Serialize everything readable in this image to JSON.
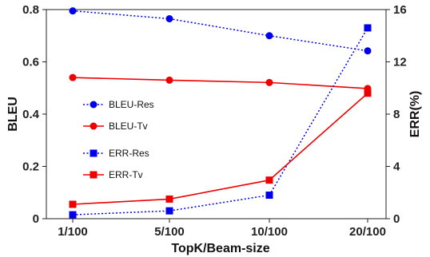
{
  "chart_data": {
    "type": "line",
    "categories": [
      "1/100",
      "5/100",
      "10/100",
      "20/100"
    ],
    "xlabel": "TopK/Beam-size",
    "ylabel_left": "BLEU",
    "ylabel_right": "ERR(%)",
    "ylim_left": [
      0,
      0.8
    ],
    "ylim_right": [
      0,
      16
    ],
    "yticks_left": [
      "0",
      "0.2",
      "0.4",
      "0.6",
      "0.8"
    ],
    "yticks_right": [
      "0",
      "4",
      "8",
      "12",
      "16"
    ],
    "grid": false,
    "legend_position": "center-left",
    "series": [
      {
        "name": "BLEU-Res",
        "axis": "left",
        "values": [
          0.795,
          0.765,
          0.7,
          0.642
        ],
        "color": "#0000ee",
        "marker": "circle",
        "line": "dotted"
      },
      {
        "name": "BLEU-Tv",
        "axis": "left",
        "values": [
          0.54,
          0.53,
          0.521,
          0.498
        ],
        "color": "#ee0000",
        "marker": "circle",
        "line": "solid"
      },
      {
        "name": "ERR-Res",
        "axis": "right",
        "values": [
          0.3,
          0.6,
          1.8,
          14.6
        ],
        "color": "#0000ee",
        "marker": "square",
        "line": "dotted"
      },
      {
        "name": "ERR-Tv",
        "axis": "right",
        "values": [
          1.1,
          1.5,
          2.95,
          9.6
        ],
        "color": "#ee0000",
        "marker": "square",
        "line": "solid"
      }
    ]
  }
}
